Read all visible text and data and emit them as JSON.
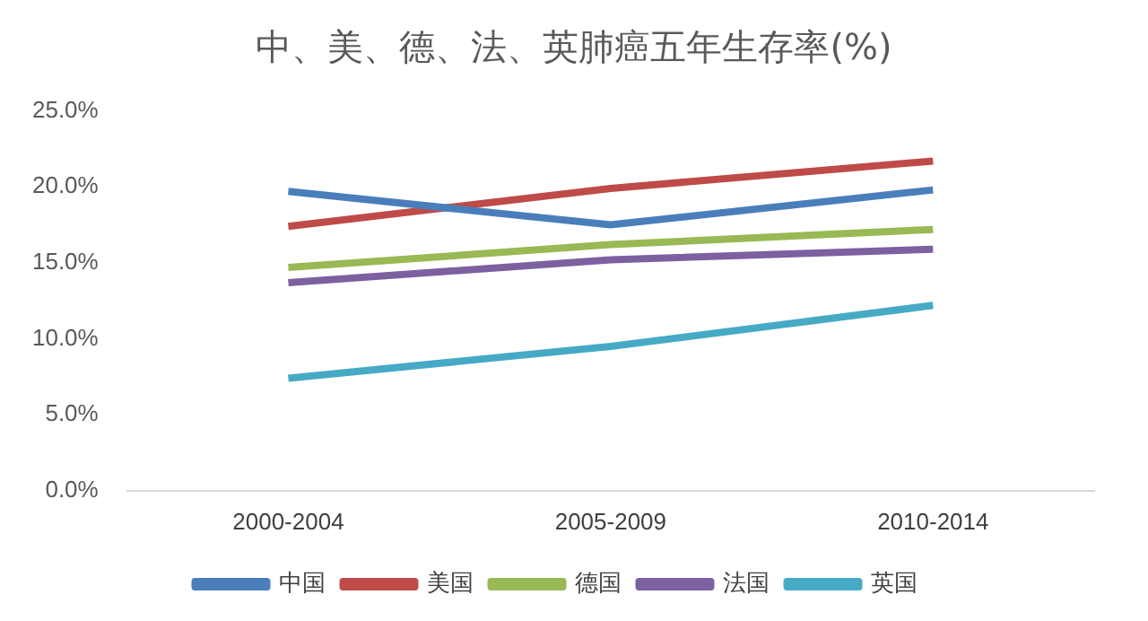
{
  "chart_data": {
    "type": "line",
    "title": "中、美、德、法、英肺癌五年生存率(%)",
    "categories": [
      "2000-2004",
      "2005-2009",
      "2010-2014"
    ],
    "series": [
      {
        "name": "中国",
        "color": "#4a7ebb",
        "values": [
          19.7,
          17.5,
          19.8
        ]
      },
      {
        "name": "美国",
        "color": "#be4b48",
        "values": [
          17.4,
          19.9,
          21.7
        ]
      },
      {
        "name": "德国",
        "color": "#98b954",
        "values": [
          14.7,
          16.2,
          17.2
        ]
      },
      {
        "name": "法国",
        "color": "#7d60a0",
        "values": [
          13.7,
          15.2,
          15.9
        ]
      },
      {
        "name": "英国",
        "color": "#46aac5",
        "values": [
          7.4,
          9.5,
          12.2
        ]
      }
    ],
    "ylim": [
      0,
      25
    ],
    "yticks": [
      {
        "value": 0,
        "label": "0.0%"
      },
      {
        "value": 5,
        "label": "5.0%"
      },
      {
        "value": 10,
        "label": "10.0%"
      },
      {
        "value": 15,
        "label": "15.0%"
      },
      {
        "value": 20,
        "label": "20.0%"
      },
      {
        "value": 25,
        "label": "25.0%"
      }
    ],
    "grid": false,
    "legend": "bottom",
    "marker": "none",
    "line_style": "solid"
  }
}
